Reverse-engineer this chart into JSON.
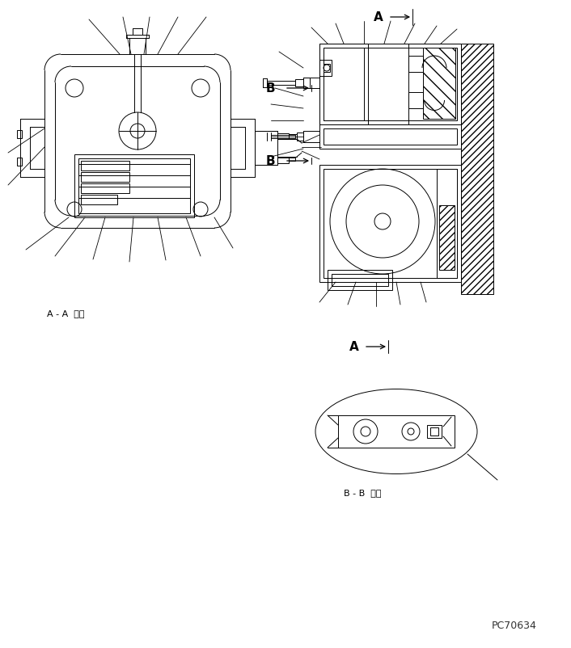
{
  "bg_color": "#ffffff",
  "line_color": "#000000",
  "hatch_color": "#000000",
  "title_color": "#000000",
  "fig_width": 7.06,
  "fig_height": 8.03,
  "label_A_top": "A",
  "label_A_bottom": "A",
  "label_B_upper": "B",
  "label_B_lower": "B",
  "label_AA": "A - A  断面",
  "label_BB": "B - B  矢視",
  "watermark": "PC70634"
}
